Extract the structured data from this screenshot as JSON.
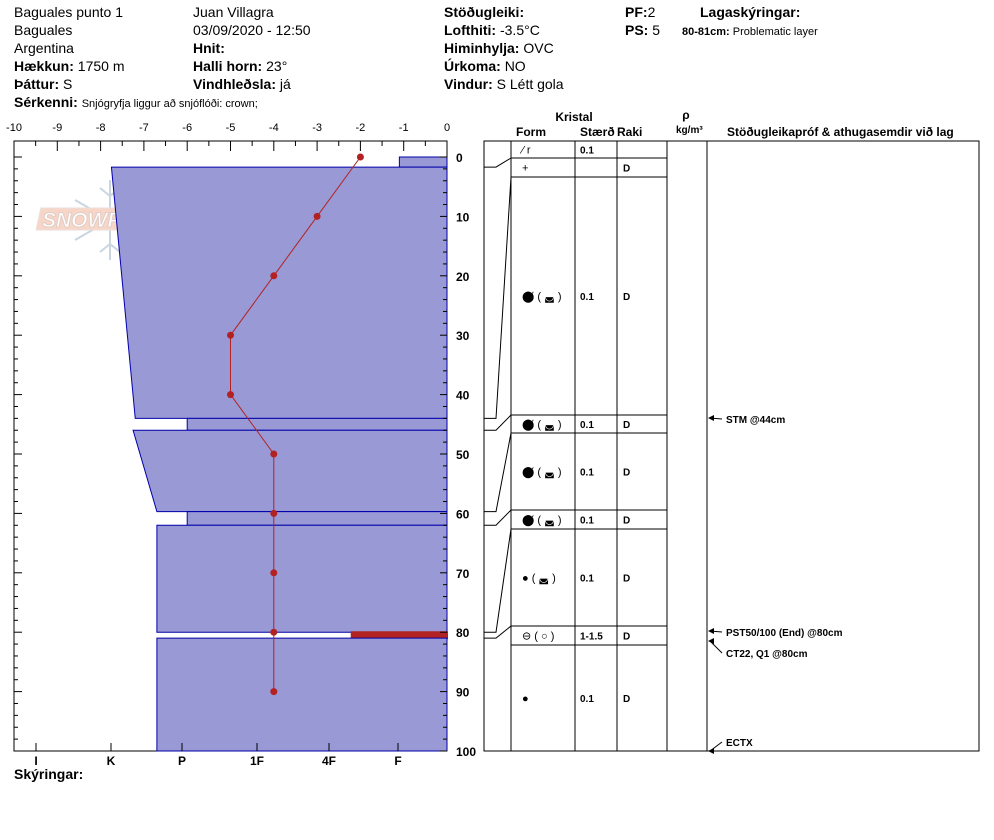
{
  "header": {
    "location": "Baguales punto 1",
    "region": "Baguales",
    "country": "Argentina",
    "elevation_label": "Hækkun:",
    "elevation_value": "1750 m",
    "aspect_label": "Þáttur:",
    "aspect_value": "S",
    "observer": "Juan Villagra",
    "datetime": "03/09/2020 - 12:50",
    "coords_label": "Hnit:",
    "coords_value": "",
    "slope_label": "Halli horn:",
    "slope_value": "23°",
    "wind_loading_label": "Vindhleðsla:",
    "wind_loading_value": "já",
    "stability_label": "Stöðugleiki:",
    "stability_value": "",
    "air_temp_label": "Lofthiti:",
    "air_temp_value": "-3.5°C",
    "sky_label": "Himinhylja:",
    "sky_value": "OVC",
    "precip_label": "Úrkoma:",
    "precip_value": "NO",
    "wind_label": "Vindur:",
    "wind_value": "S Létt gola",
    "pf_label": "PF:",
    "pf_value": "2",
    "ps_label": "PS:",
    "ps_value": "5",
    "layer_notes_label": "Lagaskýringar:",
    "layer_notes_range": "80-81cm:",
    "layer_notes_text": "Problematic layer",
    "features_label": "Sérkenni:",
    "features_value": "Snjógryfja liggur að snjóflóði: crown;",
    "notes_label": "Skýringar:"
  },
  "logo": {
    "text": "SNOWPILOT"
  },
  "columns": {
    "crystal": "Kristal",
    "form": "Form",
    "size": "Stærð",
    "moisture": "Raki",
    "rho": "ρ",
    "density_unit": "kg/m³",
    "comments": "Stöðugleikapróf & athugasemdir við lag"
  },
  "chart_data": {
    "type": "snow-profile",
    "temp_axis": {
      "ticks": [
        "-10",
        "-9",
        "-8",
        "-7",
        "-6",
        "-5",
        "-4",
        "-3",
        "-2",
        "-1",
        "0"
      ],
      "range": [
        -10,
        0
      ]
    },
    "depth_axis": {
      "ticks": [
        "0",
        "10",
        "20",
        "30",
        "40",
        "50",
        "60",
        "70",
        "80",
        "90",
        "100"
      ],
      "range": [
        0,
        100
      ]
    },
    "hardness_axis": {
      "labels": [
        "I",
        "K",
        "P",
        "1F",
        "4F",
        "F"
      ]
    },
    "temperature_profile": [
      {
        "depth": 0,
        "temp": -2.0
      },
      {
        "depth": 10,
        "temp": -3.0
      },
      {
        "depth": 20,
        "temp": -4.0
      },
      {
        "depth": 30,
        "temp": -5.0
      },
      {
        "depth": 40,
        "temp": -5.0
      },
      {
        "depth": 50,
        "temp": -4.0
      },
      {
        "depth": 60,
        "temp": -4.0
      },
      {
        "depth": 70,
        "temp": -4.0
      },
      {
        "depth": 80,
        "temp": -4.0
      },
      {
        "depth": 90,
        "temp": -4.0
      }
    ],
    "hardness_bands": [
      {
        "top": 0,
        "bottom": 1.7,
        "temp_edge": -1.1
      },
      {
        "top": 1.7,
        "bottom": 44,
        "temp_edge_top": -7.75,
        "temp_edge_bottom": -7.2
      },
      {
        "top": 44,
        "bottom": 46,
        "temp_edge": -6.0
      },
      {
        "top": 46,
        "bottom": 59.7,
        "temp_edge_top": -7.25,
        "temp_edge_bottom": -6.7
      },
      {
        "top": 59.7,
        "bottom": 62,
        "temp_edge": -6.0
      },
      {
        "top": 62,
        "bottom": 80,
        "temp_edge": -6.7
      },
      {
        "top": 80,
        "bottom": 81,
        "temp_edge": -2.2
      },
      {
        "top": 81,
        "bottom": 100,
        "temp_edge": -6.7
      }
    ],
    "layer_lines": [
      1.7,
      44,
      46,
      59.7,
      62,
      80,
      81
    ],
    "layers": [
      {
        "top": 0,
        "bottom": 1.7,
        "form": "⁄ r",
        "size": "0.1",
        "moisture": ""
      },
      {
        "top": 1.7,
        "bottom": 3.5,
        "form": "+",
        "size": "",
        "moisture": "D"
      },
      {
        "top": 3.5,
        "bottom": 44,
        "form": "⬤̸ ( ◛ )",
        "size": "0.1",
        "moisture": "D"
      },
      {
        "top": 44,
        "bottom": 46,
        "form": "⬤̸ ( ◛ )",
        "size": "0.1",
        "moisture": "D"
      },
      {
        "top": 46,
        "bottom": 59.7,
        "form": "⬤̸ ( ◛ )",
        "size": "0.1",
        "moisture": "D"
      },
      {
        "top": 59.7,
        "bottom": 62,
        "form": "⬤̸ ( ◛ )",
        "size": "0.1",
        "moisture": "D"
      },
      {
        "top": 62,
        "bottom": 80,
        "form": "● ( ◛ )",
        "size": "0.1",
        "moisture": "D"
      },
      {
        "top": 80,
        "bottom": 81,
        "form": "⊖ ( ○ )",
        "size": "1-1.5",
        "moisture": "D"
      },
      {
        "top": 81,
        "bottom": 100,
        "form": "●",
        "size": "0.1",
        "moisture": "D"
      }
    ],
    "tests": [
      {
        "depth": 44,
        "text": "STM @44cm"
      },
      {
        "depth": 80,
        "text": "PST50/100 (End) @80cm"
      },
      {
        "depth": 80,
        "text": "CT22, Q1 @80cm"
      },
      {
        "depth": 100,
        "text": "ECTX"
      }
    ]
  },
  "colors": {
    "band_fill": "#9999d6",
    "band_stroke": "#0000aa",
    "temp_line": "#b22222",
    "problem_line": "#b22222"
  }
}
